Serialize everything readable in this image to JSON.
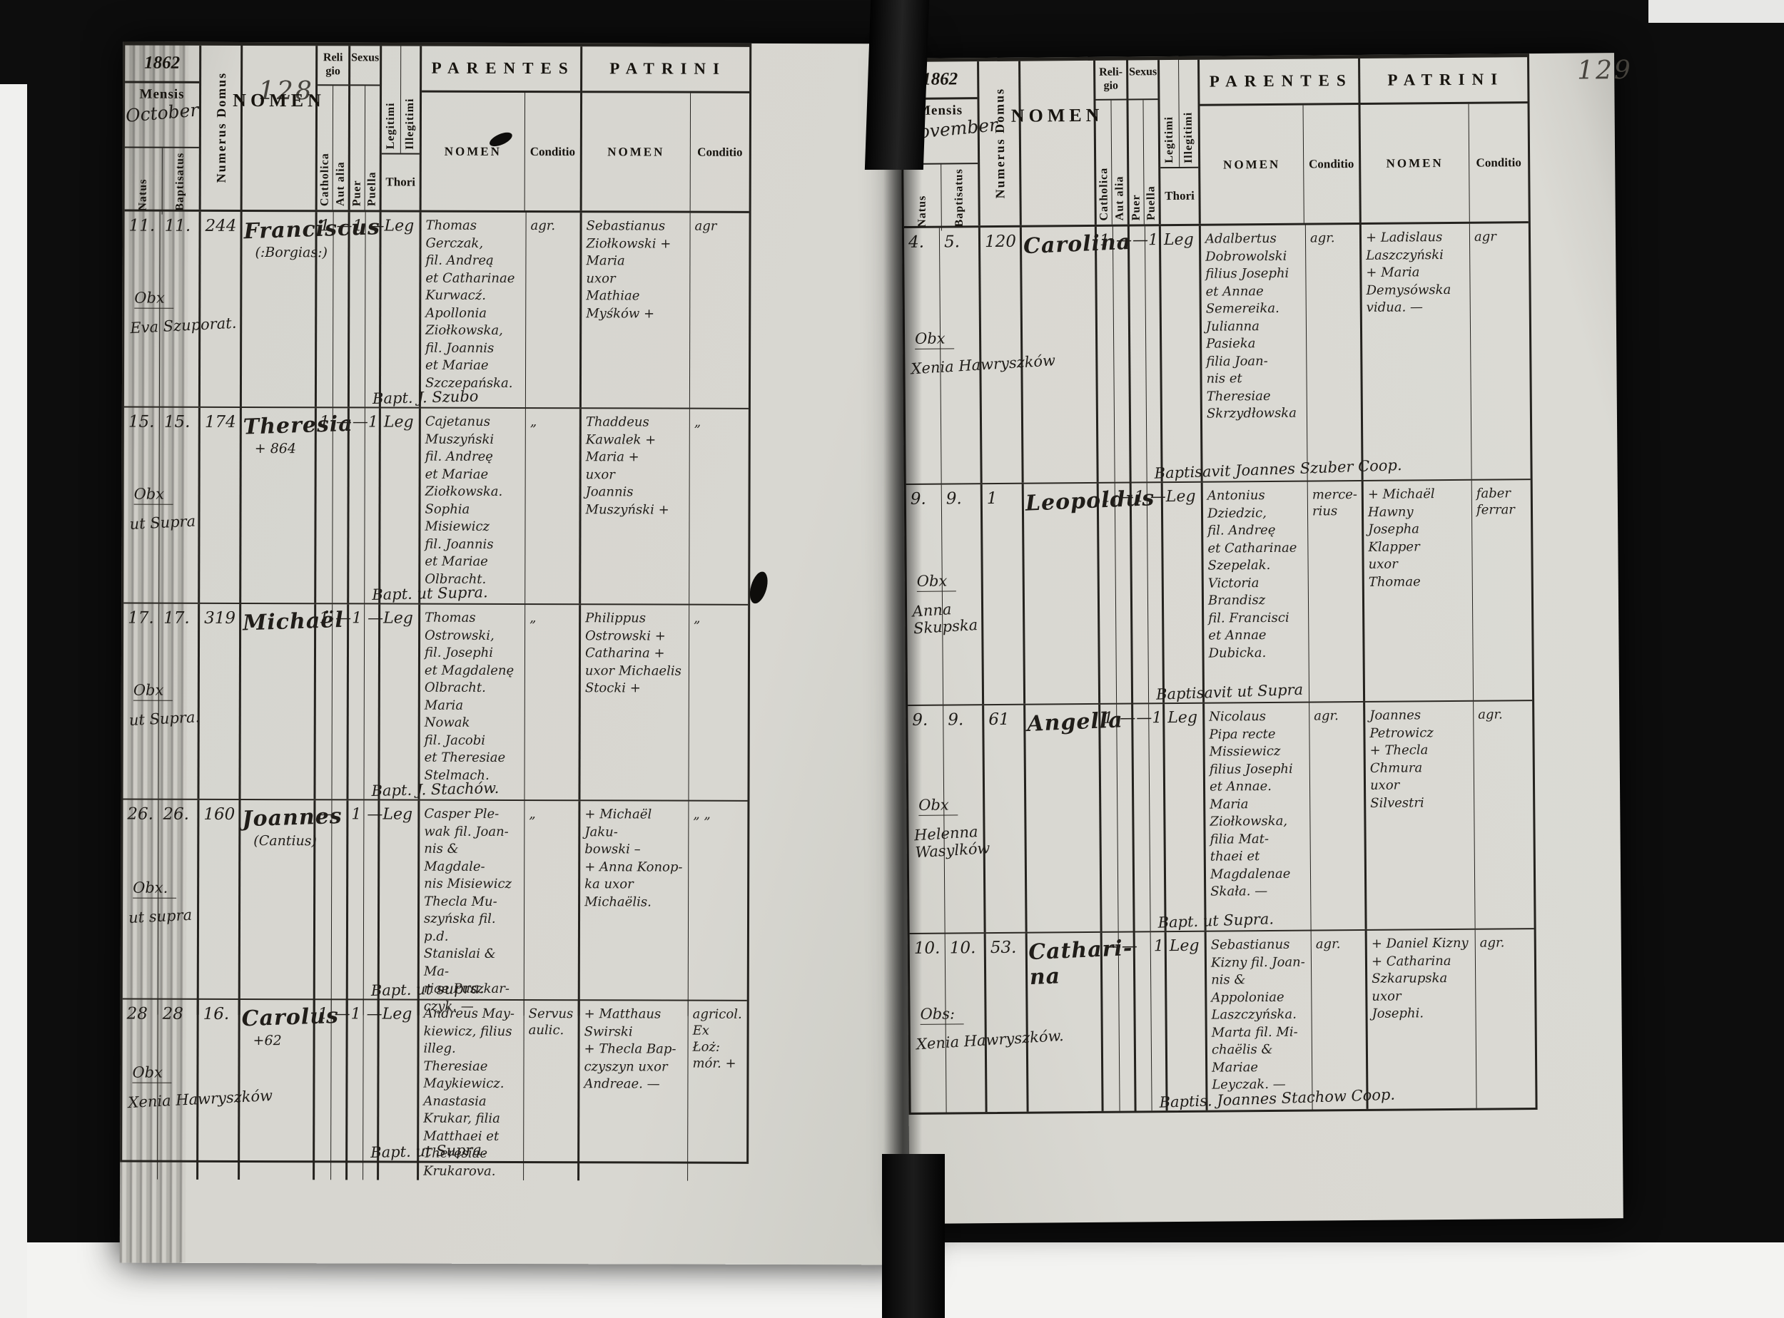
{
  "colors": {
    "paper": "#d8d7d1",
    "ink": "#201d19",
    "table_line": "#24221e"
  },
  "page_left": {
    "page_number": "128",
    "year": "1862",
    "month": "October",
    "headers": {
      "mensis": "Mensis",
      "natus": "Natus",
      "baptisatus": "Baptisatus",
      "numerus_domus": "Numerus Domus",
      "nomen": "NOMEN",
      "religio": "Reli\ngio",
      "catholica": "Catholica",
      "aut_alia": "Aut alia",
      "sexus": "Sexus",
      "puer": "Puer",
      "puella": "Puella",
      "legitimi": "Legitimi",
      "illegitimi": "Illegitimi",
      "thori": "Thori",
      "parentes": "PARENTES",
      "patrini": "PATRINI",
      "nomen_sub": "NOMEN",
      "conditio": "Conditio"
    },
    "records": [
      {
        "natus": "11.",
        "baptisatus": "11.",
        "numerus": "244",
        "nomen": "Franciscus",
        "nomen_sub": "(:Borgias:)",
        "note1": "Obx",
        "note2": "Eva Szuporat.",
        "catholica": "1",
        "aut_alia": "—",
        "puer": "1",
        "puella": "—",
        "legitimi": "Leg",
        "parentes": "Thomas\nGerczak,\nfil. Andreą\net Catharinae\nKurwacź.\nApollonia\nZiołkowska,\nfil. Joannis\net Mariae\nSzczepańska.",
        "parentes_conditio": "agr.",
        "patrini": "Sebastianus\nZiołkowski +\nMaria\nuxor\nMathiae\nMyśków +",
        "patrini_conditio": "agr",
        "baptism_note": "Bapt. J. Szubo"
      },
      {
        "natus": "15.",
        "baptisatus": "15.",
        "numerus": "174",
        "nomen": "Theresia",
        "nomen_sub": "+ 864",
        "note1": "Obx",
        "note2": "ut Supra",
        "catholica": "1",
        "aut_alia": "—",
        "puer": "—",
        "puella": "1",
        "legitimi": "Leg",
        "parentes": "Cajetanus\nMuszyński\nfil. Andreę\net Mariae\nZiołkowska.\nSophia\nMisiewicz\nfil. Joannis\net Mariae\nOlbracht.",
        "parentes_conditio": "„",
        "patrini": "Thaddeus\nKawalek +\nMaria +\nuxor\nJoannis\nMuszyński +",
        "patrini_conditio": "„",
        "baptism_note": "Bapt. ut Supra."
      },
      {
        "natus": "17.",
        "baptisatus": "17.",
        "numerus": "319",
        "nomen": "Michaël",
        "nomen_sub": "",
        "note1": "Obx",
        "note2": "ut Supra.",
        "catholica": "1",
        "aut_alia": "—",
        "puer": "1",
        "puella": "—",
        "legitimi": "Leg",
        "parentes": "Thomas\nOstrowski,\nfil. Josephi\net Magdalenę\nOlbracht.\nMaria\nNowak\nfil. Jacobi\net Theresiae\nStelmach.",
        "parentes_conditio": "„",
        "patrini": "Philippus\nOstrowski +\nCatharina +\nuxor Michaelis\nStocki +",
        "patrini_conditio": "„",
        "baptism_note": "Bapt. J. Stachów."
      },
      {
        "natus": "26.",
        "baptisatus": "26.",
        "numerus": "160",
        "nomen": "Joannes",
        "nomen_sub": "(Cantius)",
        "note1": "Obx.",
        "note2": "ut supra",
        "catholica": "—",
        "aut_alia": "",
        "puer": "1",
        "puella": "—",
        "legitimi": "Leg",
        "parentes": "Casper Ple-\nwak fil. Joan-\nnis & Magdale-\nnis Misiewicz\nThecla Mu-\nszyńska fil. p.d.\nStanislai & Ma-\nriae Puszkar-\nczyk. —",
        "parentes_conditio": "„",
        "patrini": "+ Michaël Jaku-\nbowski –\n+ Anna Konop-\nka uxor\nMichaëlis.",
        "patrini_conditio": "„ „",
        "baptism_note": "Bapt. ut supra."
      },
      {
        "natus": "28",
        "baptisatus": "28",
        "numerus": "16.",
        "nomen": "Carolus",
        "nomen_sub": "+62",
        "note1": "Obx",
        "note2": "Xenia Hawryszków",
        "catholica": "1",
        "aut_alia": "—",
        "puer": "1",
        "puella": "—",
        "legitimi": "Leg",
        "parentes": "Andreus May-\nkiewicz, filius\nilleg. Theresiae\nMaykiewicz.\nAnastasia\nKrukar, filia\nMatthaei et\nTheresiae Krukarova.",
        "parentes_conditio": "Servus\naulic.",
        "patrini": "+ Matthaus\nSwirski\n+ Thecla Bap-\nczyszyn uxor\nAndreae. —",
        "patrini_conditio": "agricol.\nEx\nŁoż:\nmór. +",
        "baptism_note": "Bapt. ut Supra."
      }
    ]
  },
  "page_right": {
    "page_number": "129",
    "year": "1862",
    "month": "November",
    "headers": {
      "mensis": "Mensis",
      "natus": "Natus",
      "baptisatus": "Baptisatus",
      "numerus_domus": "Numerus Domus",
      "nomen": "NOMEN",
      "religio": "Reli-\ngio",
      "catholica": "Catholica",
      "aut_alia": "Aut alia",
      "sexus": "Sexus",
      "puer": "Puer",
      "puella": "Puella",
      "legitimi": "Legitimi",
      "illegitimi": "Illegitimi",
      "thori": "Thori",
      "parentes": "PARENTES",
      "patrini": "PATRINI",
      "nomen_sub": "NOMEN",
      "conditio": "Conditio"
    },
    "records": [
      {
        "natus": "4.",
        "baptisatus": "5.",
        "numerus": "120",
        "nomen": "Carolina",
        "nomen_sub": "",
        "note1": "Obx",
        "note2": "Xenia Hawryszków",
        "catholica": "1",
        "aut_alia": "—",
        "puer": "—",
        "puella": "1",
        "legitimi": "Leg",
        "parentes": "Adalbertus\nDobrowolski\nfilius Josephi\net Annae\nSemereika.\nJulianna\nPasieka\nfilia Joan-\nnis et\nTheresiae\nSkrzydłowska",
        "parentes_conditio": "agr.",
        "patrini": "+ Ladislaus\nLaszczyński\n+ Maria\nDemysówska\nvidua. —",
        "patrini_conditio": "agr",
        "baptism_note": "Baptisavit Joannes Szuber Coop."
      },
      {
        "natus": "9.",
        "baptisatus": "9.",
        "numerus": "1",
        "nomen": "Leopoldus",
        "nomen_sub": "",
        "note1": "Obx",
        "note2": "Anna\nSkupska",
        "catholica": "1",
        "aut_alia": "—",
        "puer": "1",
        "puella": "—",
        "legitimi": "Leg",
        "parentes": "Antonius\nDziedzic,\nfil. Andreę\net Catharinae\nSzepelak.\nVictoria\nBrandisz\nfil. Francisci\net Annae\nDubicka.",
        "parentes_conditio": "merce-\nrius",
        "patrini": "+ Michaël\nHawny\nJosepha\nKlapper\nuxor\nThomae",
        "patrini_conditio": "faber\nferrar",
        "baptism_note": "Baptisavit ut Supra"
      },
      {
        "natus": "9.",
        "baptisatus": "9.",
        "numerus": "61",
        "nomen": "Angella",
        "nomen_sub": "",
        "note1": "Obx",
        "note2": "Helenna\nWasylków",
        "catholica": "1",
        "aut_alia": "—",
        "puer": "—",
        "puella": "1",
        "legitimi": "Leg",
        "parentes": "Nicolaus\nPipa recte\nMissiewicz\nfilius Josephi\net Annae.\nMaria\nZiołkowska,\nfilia Mat-\nthaei et\nMagdalenae\nSkała. —",
        "parentes_conditio": "agr.",
        "patrini": "Joannes\nPetrowicz\n+ Thecla\nChmura\nuxor\nSilvestri",
        "patrini_conditio": "agr.",
        "baptism_note": "Bapt. ut Supra."
      },
      {
        "natus": "10.",
        "baptisatus": "10.",
        "numerus": "53.",
        "nomen": "Cathari-\nna",
        "nomen_sub": "",
        "note1": "Obs:",
        "note2": "Xenia Hawryszków.",
        "catholica": "—",
        "aut_alia": "—",
        "puer": "",
        "puella": "1",
        "legitimi": "Leg",
        "parentes": "Sebastianus\nKizny fil. Joan-\nnis & Appoloniae\nLaszczyńska.\nMarta fil. Mi-\nchaëlis & Mariae\nLeyczak. —",
        "parentes_conditio": "agr.",
        "patrini": "+ Daniel Kizny\n+ Catharina\nSzkarupska\nuxor\nJosephi.",
        "patrini_conditio": "agr.",
        "baptism_note": "Baptis. Joannes Stachow Coop."
      }
    ]
  }
}
